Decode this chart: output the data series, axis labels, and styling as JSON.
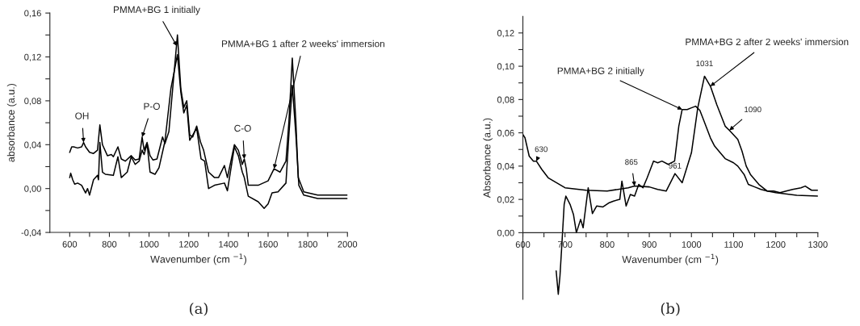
{
  "chart_data": [
    {
      "type": "line",
      "xlabel": "Wavenumber (cm $^{−1}$)",
      "ylabel": "absorbance (a.u.)",
      "xlim": [
        500,
        2000
      ],
      "ylim": [
        -0.04,
        0.16
      ],
      "xticks": [
        {
          "value": 600,
          "label": "600"
        },
        {
          "value": 700,
          "label": null
        },
        {
          "value": 800,
          "label": "800"
        },
        {
          "value": 900,
          "label": null
        },
        {
          "value": 1000,
          "label": "1000"
        },
        {
          "value": 1100,
          "label": null
        },
        {
          "value": 1200,
          "label": "1200"
        },
        {
          "value": 1300,
          "label": null
        },
        {
          "value": 1400,
          "label": "1400"
        },
        {
          "value": 1500,
          "label": null
        },
        {
          "value": 1600,
          "label": "1600"
        },
        {
          "value": 1700,
          "label": null
        },
        {
          "value": 1800,
          "label": "1800"
        },
        {
          "value": 1900,
          "label": null
        },
        {
          "value": 2000,
          "label": "2000"
        }
      ],
      "yticks": [
        {
          "value": -0.04,
          "label": "-0,04"
        },
        {
          "value": -0.02,
          "label": null
        },
        {
          "value": 0,
          "label": "0,00"
        },
        {
          "value": 0.02,
          "label": null
        },
        {
          "value": 0.04,
          "label": "0,04"
        },
        {
          "value": 0.06,
          "label": null
        },
        {
          "value": 0.08,
          "label": "0,08"
        },
        {
          "value": 0.1,
          "label": null
        },
        {
          "value": 0.12,
          "label": "0,12"
        },
        {
          "value": 0.14,
          "label": null
        },
        {
          "value": 0.16,
          "label": "0,16"
        }
      ],
      "grid": false,
      "legend": false,
      "series": [
        {
          "color": "#000000",
          "x": [
            600,
            610,
            620,
            640,
            660,
            670,
            680,
            700,
            720,
            740,
            752,
            765,
            790,
            810,
            820,
            843,
            860,
            880,
            910,
            930,
            950,
            965,
            975,
            990,
            1005,
            1020,
            1040,
            1068,
            1080,
            1100,
            1120,
            1143,
            1160,
            1175,
            1190,
            1205,
            1220,
            1240,
            1260,
            1275,
            1300,
            1330,
            1350,
            1380,
            1395,
            1430,
            1450,
            1470,
            1480,
            1490,
            1500,
            1550,
            1600,
            1630,
            1660,
            1690,
            1705,
            1722,
            1740,
            1752,
            1780,
            1850,
            1950,
            2000
          ],
          "values": [
            0.033,
            0.038,
            0.038,
            0.037,
            0.038,
            0.042,
            0.038,
            0.033,
            0.032,
            0.035,
            0.058,
            0.04,
            0.03,
            0.031,
            0.029,
            0.038,
            0.027,
            0.025,
            0.03,
            0.026,
            0.027,
            0.047,
            0.035,
            0.042,
            0.03,
            0.026,
            0.027,
            0.047,
            0.041,
            0.052,
            0.093,
            0.14,
            0.091,
            0.074,
            0.08,
            0.049,
            0.047,
            0.057,
            0.042,
            0.035,
            0.015,
            0.01,
            0.01,
            0.021,
            0.01,
            0.04,
            0.035,
            0.022,
            0.027,
            0.018,
            0.003,
            0.003,
            0.007,
            0.018,
            0.015,
            0.025,
            0.061,
            0.119,
            0.061,
            0.01,
            -0.003,
            -0.006,
            -0.006,
            -0.006
          ]
        },
        {
          "color": "#000000",
          "x": [
            600,
            605,
            615,
            625,
            640,
            660,
            680,
            690,
            700,
            720,
            740,
            745,
            752,
            765,
            780,
            820,
            843,
            860,
            890,
            910,
            930,
            950,
            965,
            975,
            990,
            1005,
            1030,
            1050,
            1080,
            1110,
            1143,
            1160,
            1175,
            1190,
            1205,
            1240,
            1262,
            1280,
            1300,
            1330,
            1380,
            1395,
            1430,
            1450,
            1470,
            1480,
            1500,
            1550,
            1580,
            1600,
            1620,
            1650,
            1690,
            1705,
            1722,
            1740,
            1755,
            1780,
            1850,
            1950,
            2000
          ],
          "values": [
            0.01,
            0.014,
            0.008,
            0.004,
            0.005,
            0.003,
            -0.004,
            0.0,
            -0.006,
            0.008,
            0.012,
            0.008,
            0.042,
            0.015,
            0.013,
            0.012,
            0.029,
            0.01,
            0.015,
            0.029,
            0.022,
            0.025,
            0.035,
            0.031,
            0.041,
            0.015,
            0.013,
            0.019,
            0.043,
            0.091,
            0.122,
            0.088,
            0.069,
            0.076,
            0.044,
            0.055,
            0.027,
            0.025,
            0.0,
            0.003,
            0.005,
            -0.002,
            0.038,
            0.03,
            0.015,
            0.01,
            -0.007,
            -0.012,
            -0.018,
            -0.014,
            -0.004,
            -0.003,
            0.005,
            0.049,
            0.094,
            0.049,
            0.003,
            -0.006,
            -0.009,
            -0.009,
            -0.009
          ]
        }
      ],
      "annotations": [
        {
          "text": "PMMA+BG 1 initially",
          "x": 1140,
          "y": 0.13
        },
        {
          "text": "PMMA+BG 1 after 2 weeks' immersion",
          "x": 1630,
          "y": 0.018
        },
        {
          "text": "OH",
          "x": 670,
          "y": 0.042
        },
        {
          "text": "P-O",
          "x": 965,
          "y": 0.047
        },
        {
          "text": "C-O",
          "x": 1480,
          "y": 0.027
        },
        "(a)"
      ]
    },
    {
      "type": "line",
      "xlabel": "Wavenumber (cm $^{−1}$)",
      "ylabel": "Absorbance (a.u.)",
      "xlim": [
        600,
        1300
      ],
      "ylim": [
        -0.04,
        0.13
      ],
      "xticks": [
        {
          "value": 600,
          "label": "600"
        },
        {
          "value": 650,
          "label": null
        },
        {
          "value": 700,
          "label": "700"
        },
        {
          "value": 750,
          "label": null
        },
        {
          "value": 800,
          "label": "800"
        },
        {
          "value": 850,
          "label": null
        },
        {
          "value": 900,
          "label": "900"
        },
        {
          "value": 950,
          "label": null
        },
        {
          "value": 1000,
          "label": "1000"
        },
        {
          "value": 1050,
          "label": null
        },
        {
          "value": 1100,
          "label": "1100"
        },
        {
          "value": 1150,
          "label": null
        },
        {
          "value": 1200,
          "label": "1200"
        },
        {
          "value": 1250,
          "label": null
        },
        {
          "value": 1300,
          "label": "1300"
        }
      ],
      "yticks": [
        {
          "value": 0,
          "label": "0,00"
        },
        {
          "value": 0.01,
          "label": null
        },
        {
          "value": 0.02,
          "label": "0,02"
        },
        {
          "value": 0.03,
          "label": null
        },
        {
          "value": 0.04,
          "label": "0,04"
        },
        {
          "value": 0.05,
          "label": null
        },
        {
          "value": 0.06,
          "label": "0,06"
        },
        {
          "value": 0.07,
          "label": null
        },
        {
          "value": 0.08,
          "label": "0,08"
        },
        {
          "value": 0.09,
          "label": null
        },
        {
          "value": 0.1,
          "label": "0,10"
        },
        {
          "value": 0.11,
          "label": null
        },
        {
          "value": 0.12,
          "label": "0,12"
        }
      ],
      "grid": false,
      "legend": false,
      "series": [
        {
          "color": "#000000",
          "x": [
            600,
            605,
            615,
            625,
            632,
            645,
            660,
            700,
            750,
            800,
            850,
            865,
            900,
            920,
            940,
            961,
            978,
            1000,
            1015,
            1031,
            1045,
            1060,
            1080,
            1090,
            1110,
            1120,
            1130,
            1140,
            1160,
            1180,
            1200,
            1250,
            1300
          ],
          "values": [
            0.059,
            0.057,
            0.046,
            0.043,
            0.043,
            0.038,
            0.033,
            0.027,
            0.0255,
            0.025,
            0.027,
            0.028,
            0.0275,
            0.026,
            0.025,
            0.0355,
            0.03,
            0.048,
            0.075,
            0.094,
            0.088,
            0.077,
            0.064,
            0.0615,
            0.056,
            0.049,
            0.04,
            0.035,
            0.029,
            0.025,
            0.024,
            0.0225,
            0.022
          ]
        },
        {
          "color": "#000000",
          "x": [
            679,
            684,
            688,
            693,
            698,
            702,
            712,
            720,
            727,
            737,
            743,
            755,
            765,
            775,
            790,
            805,
            815,
            830,
            835,
            845,
            855,
            865,
            875,
            885,
            895,
            910,
            920,
            930,
            945,
            960,
            970,
            978,
            990,
            1000,
            1010,
            1020,
            1030,
            1045,
            1055,
            1065,
            1080,
            1100,
            1110,
            1125,
            1135,
            1150,
            1165,
            1180,
            1195,
            1210,
            1225,
            1240,
            1260,
            1270,
            1285,
            1300
          ],
          "values": [
            -0.023,
            -0.037,
            -0.026,
            -0.005,
            0.017,
            0.022,
            0.017,
            0.011,
            0.0,
            0.008,
            0.003,
            0.027,
            0.0115,
            0.016,
            0.0155,
            0.018,
            0.019,
            0.02,
            0.031,
            0.016,
            0.023,
            0.022,
            0.029,
            0.027,
            0.033,
            0.043,
            0.042,
            0.043,
            0.041,
            0.043,
            0.064,
            0.074,
            0.074,
            0.075,
            0.076,
            0.0735,
            0.067,
            0.057,
            0.052,
            0.049,
            0.0445,
            0.042,
            0.04,
            0.035,
            0.029,
            0.0275,
            0.026,
            0.025,
            0.025,
            0.024,
            0.025,
            0.026,
            0.027,
            0.028,
            0.0255,
            0.0255
          ]
        }
      ],
      "annotations": [
        {
          "text": "630",
          "x": 632,
          "y": 0.043
        },
        {
          "text": "865",
          "x": 865,
          "y": 0.028
        },
        {
          "text": "961",
          "x": 961,
          "y": 0.0355
        },
        {
          "text": "1031",
          "x": 1031,
          "y": 0.094
        },
        {
          "text": "1090",
          "x": 1090,
          "y": 0.0615
        },
        {
          "text": "PMMA+BG 2 initially",
          "x": 978,
          "y": 0.074
        },
        {
          "text": "PMMA+BG 2 after 2 weeks' immersion",
          "x": 1045,
          "y": 0.088
        },
        "(b)"
      ]
    }
  ]
}
